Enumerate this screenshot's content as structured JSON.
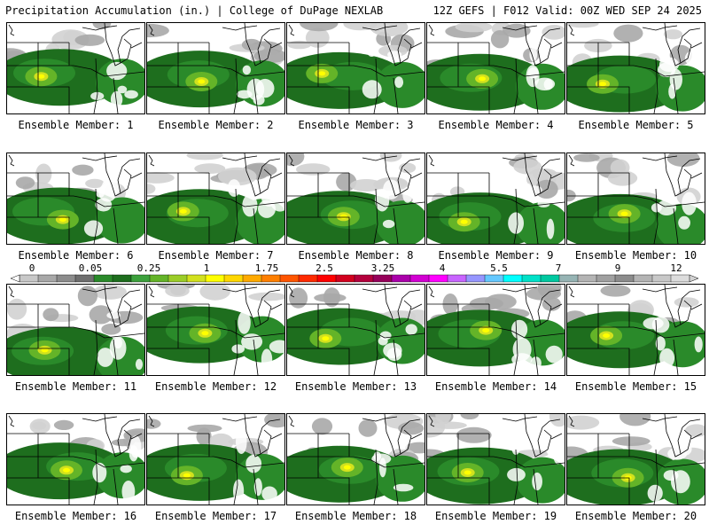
{
  "header": {
    "title_left": "Precipitation Accumulation (in.) | College of DuPage NEXLAB",
    "title_right": "12Z GEFS | F012 Valid: 00Z WED SEP 24 2025"
  },
  "member_label_prefix": "Ensemble Member: ",
  "members": [
    1,
    2,
    3,
    4,
    5,
    6,
    7,
    8,
    9,
    10,
    11,
    12,
    13,
    14,
    15,
    16,
    17,
    18,
    19,
    20
  ],
  "colorbar": {
    "tick_labels": [
      "0",
      "0.05",
      "0.25",
      "1",
      "1.75",
      "2.5",
      "3.25",
      "4",
      "5.5",
      "7",
      "9",
      "12"
    ],
    "colors": [
      "#c8c8c8",
      "#a8a8a8",
      "#8c8c8c",
      "#6e6e6e",
      "#2a8a2a",
      "#1e6e1e",
      "#3ca03c",
      "#64b428",
      "#9bcd28",
      "#d2e11e",
      "#ffff00",
      "#ffd700",
      "#ffaa00",
      "#ff7f00",
      "#ff5500",
      "#ff2a00",
      "#ff0000",
      "#d2001e",
      "#b4003c",
      "#96005a",
      "#aa00aa",
      "#d200d2",
      "#ff00ff",
      "#c864ff",
      "#9696ff",
      "#64c8ff",
      "#00ffff",
      "#00e1c8",
      "#00c8a0",
      "#96b4b4",
      "#b4b4b4",
      "#a0a0a0",
      "#8c8c8c",
      "#b4b4b4",
      "#c8c8c8",
      "#dcdcdc"
    ]
  },
  "colors": {
    "dark_green": "#1e6e1e",
    "mid_green": "#2a8a2a",
    "light_green": "#64b428",
    "yellow": "#ffff00",
    "gray_light": "#d2d2d2",
    "gray_mid": "#a8a8a8"
  }
}
